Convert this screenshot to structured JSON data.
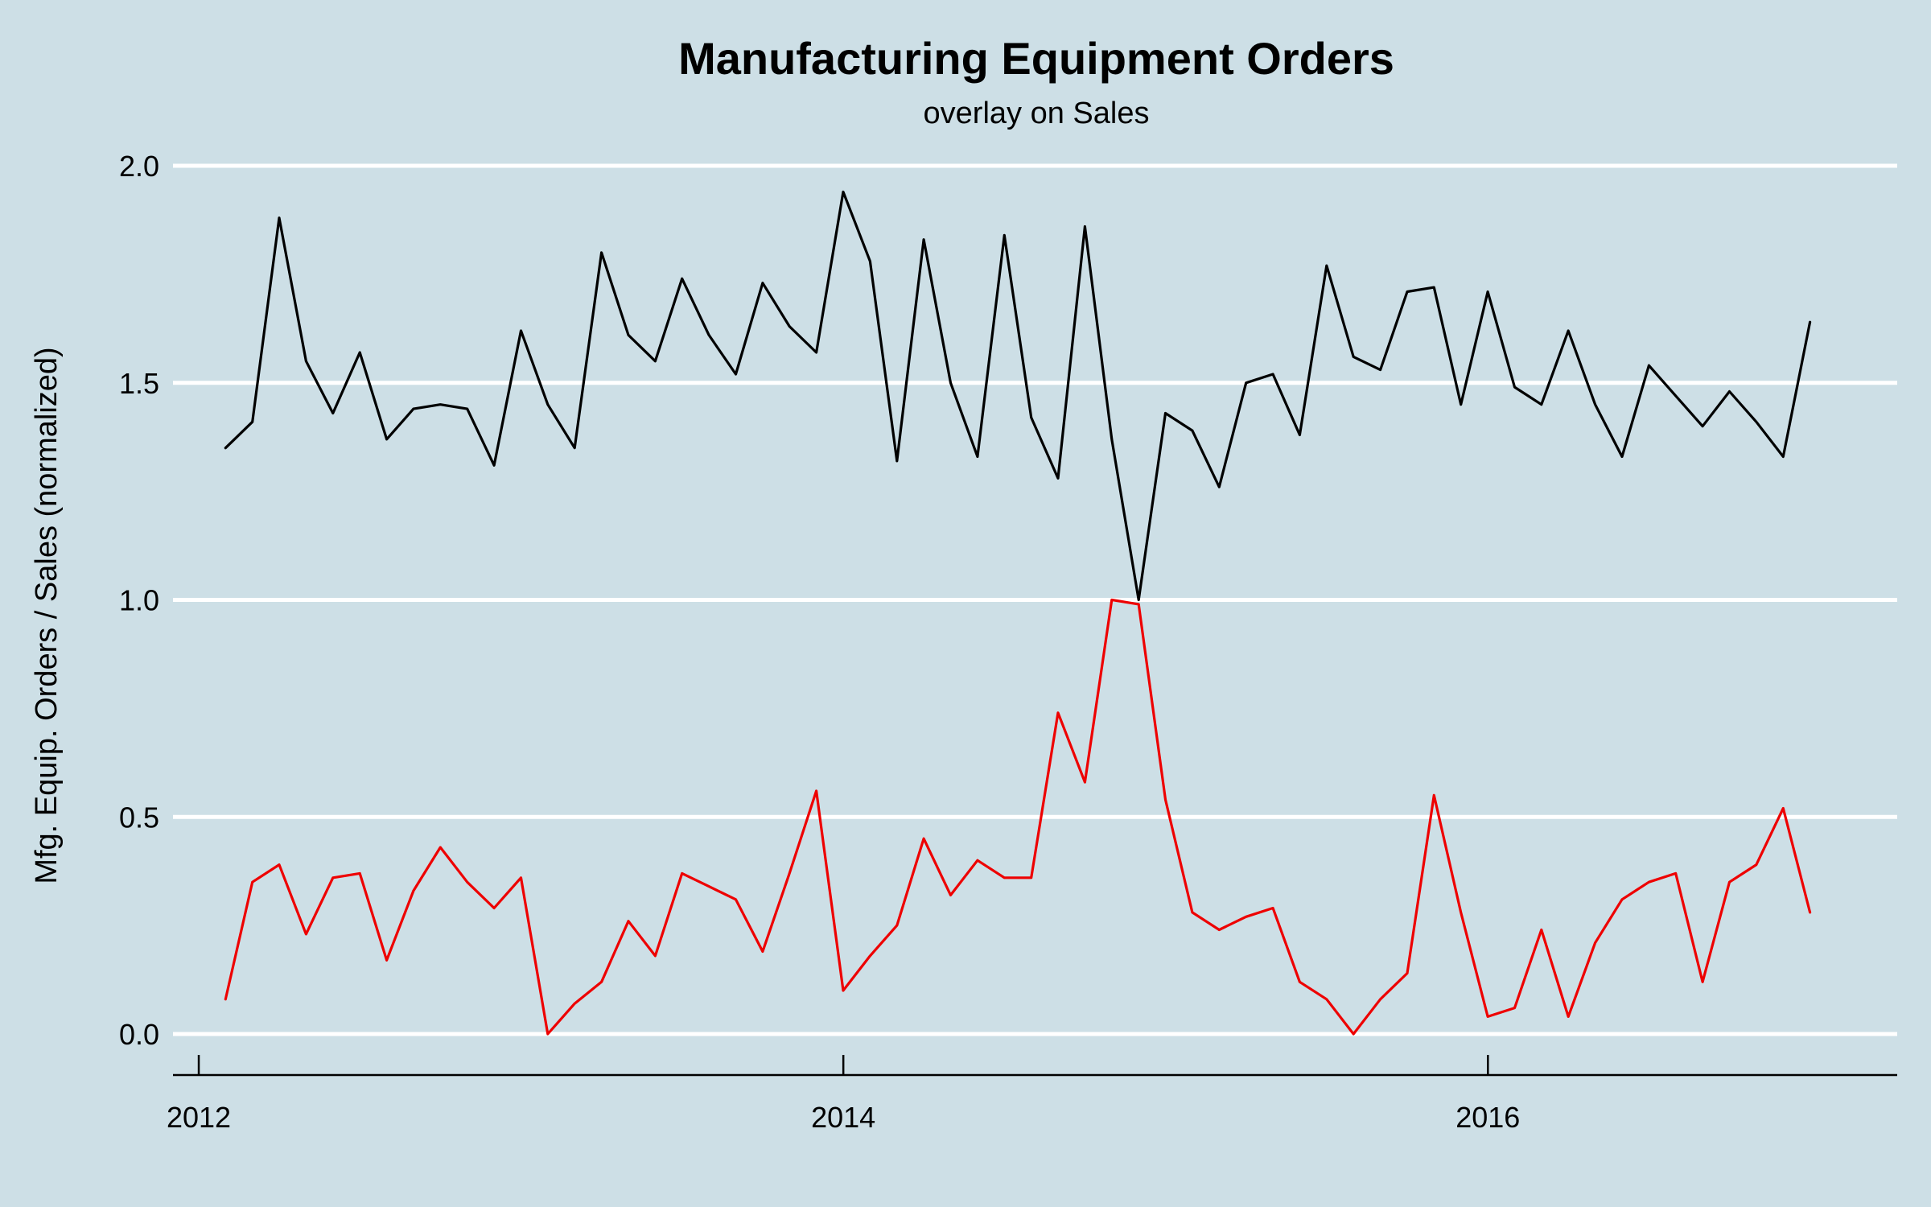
{
  "chart_data": {
    "type": "line",
    "title": "Manufacturing Equipment Orders",
    "subtitle": "overlay on Sales",
    "xlabel": "",
    "ylabel": "Mfg. Equip. Orders / Sales (normalized)",
    "ylim": [
      -0.1,
      2.1
    ],
    "xlim": [
      2011.92,
      2017.27
    ],
    "yticks": [
      {
        "value": 0.0,
        "label": "0.0"
      },
      {
        "value": 0.5,
        "label": "0.5"
      },
      {
        "value": 1.0,
        "label": "1.0"
      },
      {
        "value": 1.5,
        "label": "1.5"
      },
      {
        "value": 2.0,
        "label": "2.0"
      }
    ],
    "xticks": [
      {
        "value": 2012.0,
        "label": "2012"
      },
      {
        "value": 2014.0,
        "label": "2014"
      },
      {
        "value": 2016.0,
        "label": "2016"
      }
    ],
    "x_start": 2012.083,
    "x_step": 0.08333,
    "grid": true,
    "series": [
      {
        "name": "Sales",
        "color": "#000000",
        "values": [
          1.35,
          1.41,
          1.88,
          1.55,
          1.43,
          1.57,
          1.37,
          1.44,
          1.45,
          1.44,
          1.31,
          1.62,
          1.45,
          1.35,
          1.8,
          1.61,
          1.55,
          1.74,
          1.61,
          1.52,
          1.73,
          1.63,
          1.57,
          1.94,
          1.78,
          1.32,
          1.83,
          1.5,
          1.33,
          1.84,
          1.42,
          1.28,
          1.86,
          1.37,
          1.0,
          1.43,
          1.39,
          1.26,
          1.5,
          1.52,
          1.38,
          1.77,
          1.56,
          1.53,
          1.71,
          1.72,
          1.45,
          1.71,
          1.49,
          1.45,
          1.62,
          1.45,
          1.33,
          1.54,
          1.47,
          1.4,
          1.48,
          1.41,
          1.33,
          1.64
        ]
      },
      {
        "name": "Mfg. Equip. Orders",
        "color": "#ee0000",
        "values": [
          0.08,
          0.35,
          0.39,
          0.23,
          0.36,
          0.37,
          0.17,
          0.33,
          0.43,
          0.35,
          0.29,
          0.36,
          0.0,
          0.07,
          0.12,
          0.26,
          0.18,
          0.37,
          0.34,
          0.31,
          0.19,
          0.37,
          0.56,
          0.1,
          0.18,
          0.25,
          0.45,
          0.32,
          0.4,
          0.36,
          0.36,
          0.74,
          0.58,
          1.0,
          0.99,
          0.54,
          0.28,
          0.24,
          0.27,
          0.29,
          0.12,
          0.08,
          0.0,
          0.08,
          0.14,
          0.55,
          0.28,
          0.04,
          0.06,
          0.24,
          0.04,
          0.21,
          0.31,
          0.35,
          0.37,
          0.12,
          0.35,
          0.39,
          0.52,
          0.28
        ]
      }
    ]
  }
}
